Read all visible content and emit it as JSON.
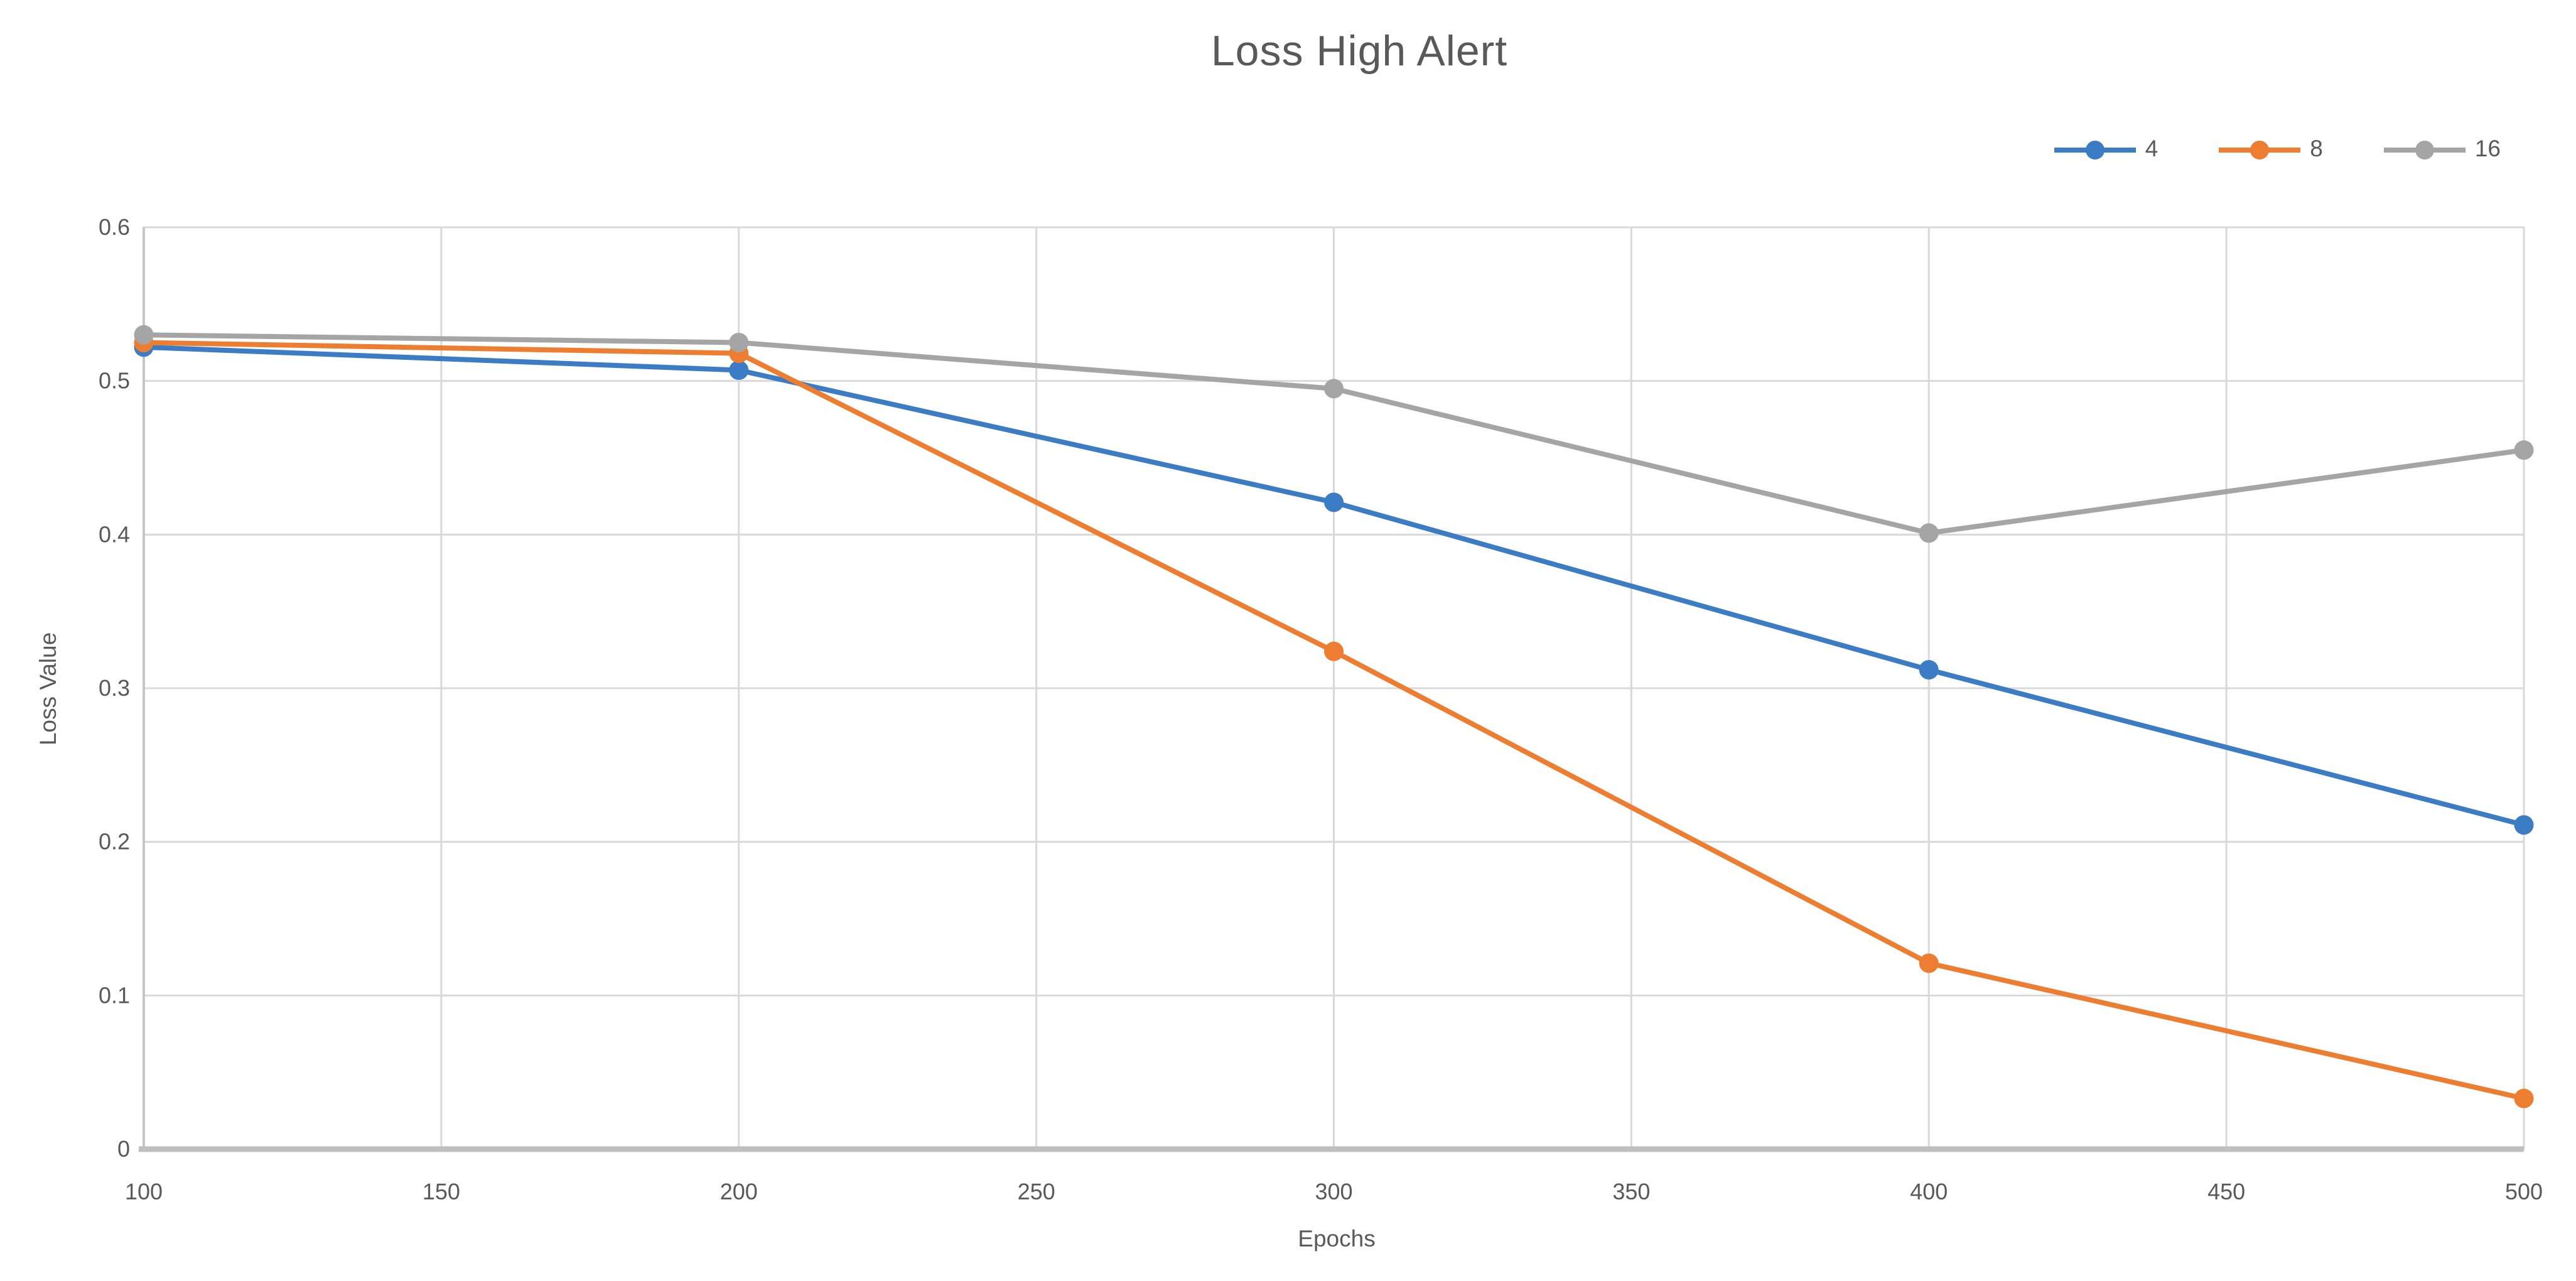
{
  "chart_data": {
    "type": "line",
    "title": "Loss High Alert",
    "xlabel": "Epochs",
    "ylabel": "Loss Value",
    "x": [
      100,
      200,
      300,
      400,
      500
    ],
    "x_ticks": [
      100,
      150,
      200,
      250,
      300,
      350,
      400,
      450,
      500
    ],
    "y_ticks": [
      "0",
      "0.1",
      "0.2",
      "0.3",
      "0.4",
      "0.5",
      "0.6"
    ],
    "xlim": [
      100,
      500
    ],
    "ylim": [
      0,
      0.6
    ],
    "grid": true,
    "legend_position": "top-right",
    "series": [
      {
        "name": "4",
        "color": "#3B7CC4",
        "values": [
          0.522,
          0.507,
          0.421,
          0.312,
          0.211
        ]
      },
      {
        "name": "8",
        "color": "#ED7D31",
        "values": [
          0.525,
          0.518,
          0.324,
          0.121,
          0.033
        ]
      },
      {
        "name": "16",
        "color": "#A5A5A5",
        "values": [
          0.53,
          0.525,
          0.495,
          0.401,
          0.455
        ]
      }
    ],
    "colors": {
      "text": "#595959",
      "gridline": "#D9D9D9",
      "axis_line": "#BFBFBF"
    }
  }
}
